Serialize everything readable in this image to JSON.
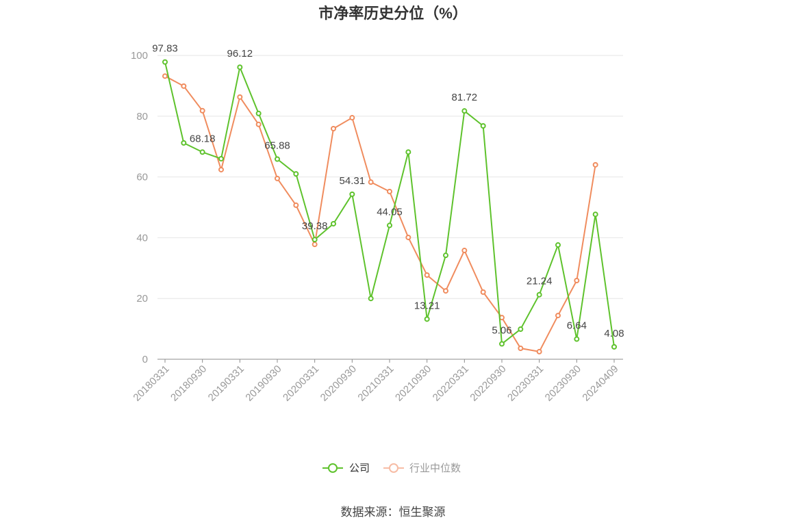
{
  "source": "数据来源：恒生聚源",
  "chart_data": {
    "type": "line",
    "title": "市净率历史分位（%）",
    "xlabel": "",
    "ylabel": "",
    "categories": [
      "20180331",
      "",
      "20180930",
      "",
      "20190331",
      "",
      "20190930",
      "",
      "20200331",
      "",
      "20200930",
      "",
      "20210331",
      "",
      "20210930",
      "",
      "20220331",
      "",
      "20220930",
      "",
      "20230331",
      "",
      "20230930",
      "",
      "20240409"
    ],
    "ylim": [
      0,
      100
    ],
    "yticks": [
      0,
      20,
      40,
      60,
      80,
      100
    ],
    "grid": true,
    "legend_position": "bottom",
    "series": [
      {
        "name": "公司",
        "color": "#5ec22c",
        "legend_color": "#5ec22c",
        "legend_text_color": "#333333",
        "values": [
          97.83,
          71.2,
          68.18,
          66.0,
          96.12,
          80.9,
          65.88,
          61.0,
          39.38,
          44.6,
          54.31,
          20.0,
          44.05,
          68.2,
          13.21,
          34.2,
          81.72,
          76.8,
          5.06,
          9.9,
          21.24,
          37.6,
          6.64,
          47.7,
          4.08
        ],
        "data_labels": [
          "97.83",
          "",
          "68.18",
          "",
          "96.12",
          "",
          "65.88",
          "",
          "39.38",
          "",
          "54.31",
          "",
          "44.05",
          "",
          "13.21",
          "",
          "81.72",
          "",
          "5.06",
          "",
          "21.24",
          "",
          "6.64",
          "",
          "4.08"
        ]
      },
      {
        "name": "行业中位数",
        "color": "#f08c5e",
        "legend_color": "#f7bca5",
        "legend_text_color": "#999999",
        "values": [
          93.2,
          89.9,
          81.8,
          62.4,
          86.3,
          77.3,
          59.5,
          50.7,
          37.8,
          75.9,
          79.5,
          58.3,
          55.2,
          40.1,
          27.7,
          22.5,
          35.8,
          22.1,
          13.7,
          3.6,
          2.5,
          14.4,
          25.9,
          64.0,
          null
        ]
      }
    ]
  }
}
